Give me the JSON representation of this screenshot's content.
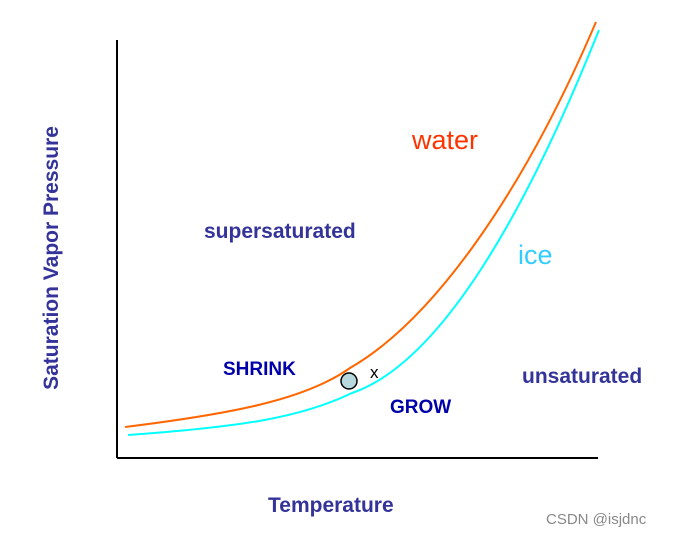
{
  "axes": {
    "y_label": "Saturation Vapor Pressure",
    "x_label": "Temperature"
  },
  "curves": {
    "water": {
      "label": "water",
      "color": "#ff6600"
    },
    "ice": {
      "label": "ice",
      "color": "#00ffff"
    }
  },
  "regions": {
    "supersaturated": "supersaturated",
    "unsaturated": "unsaturated"
  },
  "annotations": {
    "shrink": "SHRINK",
    "grow": "GROW",
    "point_marker": "x"
  },
  "droplet": {
    "fill": "#b8d8e0",
    "stroke": "#000000"
  },
  "watermark": "CSDN @isjdnc"
}
